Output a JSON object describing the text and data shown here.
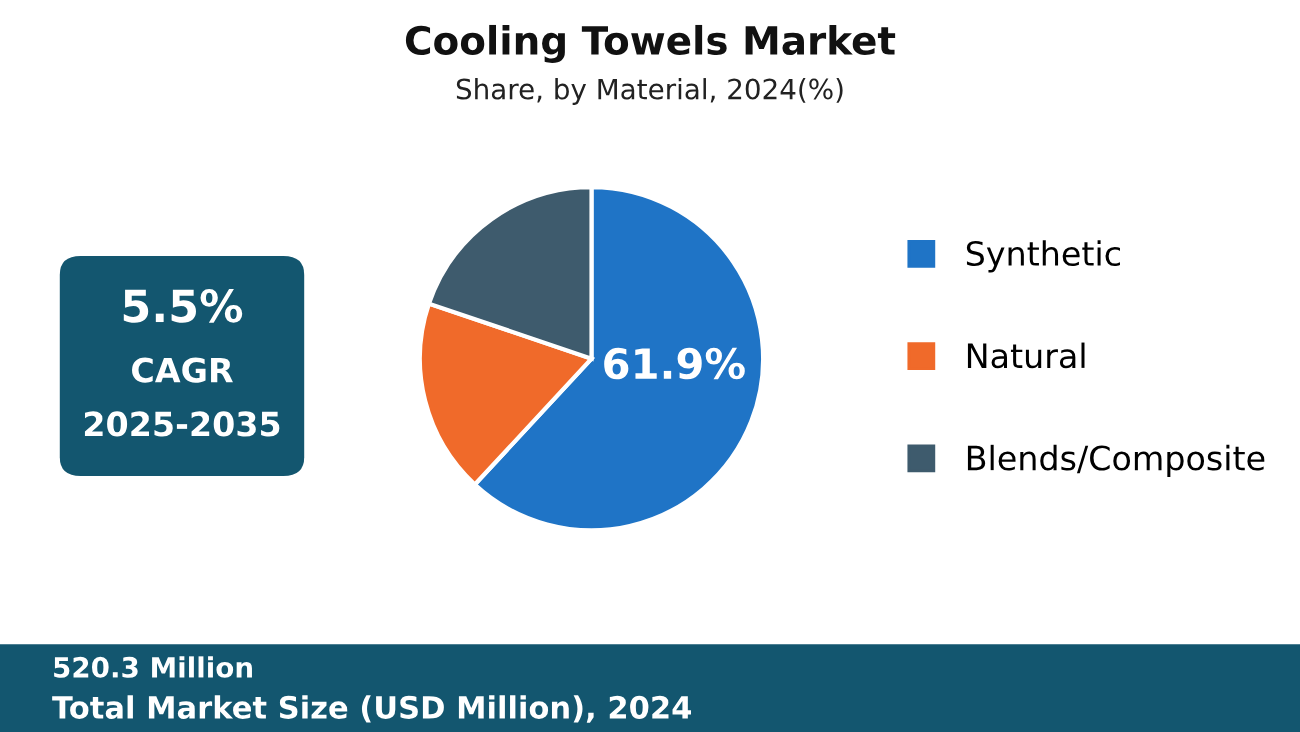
{
  "chart_data": {
    "type": "pie",
    "title": "Cooling Towels Market",
    "subtitle": "Share, by Material, 2024(%)",
    "categories": [
      "Synthetic",
      "Natural",
      "Blends/Composite"
    ],
    "values": [
      61.9,
      18.3,
      19.8
    ],
    "colors": [
      "#1f74c6",
      "#f06a2a",
      "#3e5b6d"
    ],
    "value_labels": [
      "61.9%",
      null,
      null
    ],
    "legend": "right",
    "annotations": [
      "5.5%",
      "CAGR",
      "2025-2035",
      "520.3 Million",
      "Total Market Size (USD Million), 2024"
    ]
  }
}
